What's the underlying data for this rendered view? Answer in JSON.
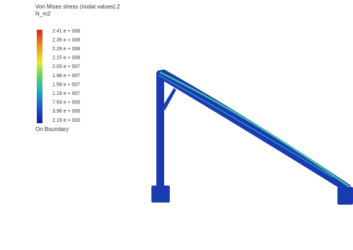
{
  "legend": {
    "title": "Von Mises stress (nodal values).2",
    "unit": "N_m2",
    "labels": [
      "2.41 e + 008",
      "2.35 e + 008",
      "2.29 e + 008",
      "2.15 e + 008",
      "2.03 e + 007",
      "1.98 e + 007",
      "1.58 e + 007",
      "1.19 e + 007",
      "7.93 e + 006",
      "3.96 e + 006",
      "2.19 e + 003"
    ],
    "footer": "On Boundary"
  }
}
